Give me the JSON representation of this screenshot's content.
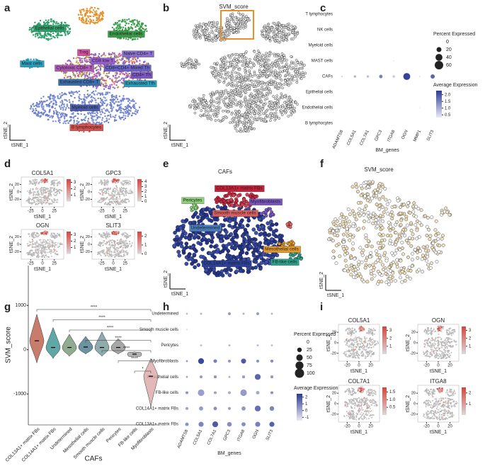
{
  "panel_labels": [
    "a",
    "b",
    "c",
    "d",
    "e",
    "f",
    "g",
    "h",
    "i"
  ],
  "a": {
    "x_label": "tSNE_1",
    "y_label": "tSNE_2",
    "clusters": [
      "Epithelial cells",
      "Endothelial cells",
      "Mast cells",
      "Treg",
      "Naive CD4+ T",
      "CD8 low T",
      "Cytotoxic CD8+ T",
      "CD8+CD4+ Mixed Th",
      "CD4+ Th",
      "Exhausted CD8+ T",
      "Exhausted Tfh",
      "Myeloid cells",
      "B lymphocytes"
    ]
  },
  "b": {
    "title": "SVM_score",
    "x_label": "tSNE_1",
    "y_label": "tSNE_2"
  },
  "d": {
    "x_label": "tSNE_1",
    "y_label": "tSNE_2",
    "xlim": [
      -45,
      45
    ],
    "xticks": [
      -25,
      0,
      25
    ],
    "ylim": [
      -40,
      40
    ],
    "yticks": [
      -20,
      0,
      20
    ],
    "plots": [
      {
        "title": "COL5A1",
        "lim": [
          0,
          3.5
        ],
        "ticks": [
          1,
          2,
          3
        ]
      },
      {
        "title": "GPC3",
        "lim": [
          0,
          4.5
        ],
        "ticks": [
          0,
          1,
          2,
          3,
          4
        ]
      },
      {
        "title": "OGN",
        "lim": [
          0,
          3.5
        ],
        "ticks": [
          1,
          2,
          3
        ]
      },
      {
        "title": "SLIT3",
        "lim": [
          0,
          2.5
        ],
        "ticks": [
          0,
          1,
          2
        ]
      }
    ]
  },
  "e": {
    "title": "CAFs",
    "x_label": "tSNE_1",
    "y_label": "tSNE_2",
    "clusters": [
      "COL13A1+ matrix FBs",
      "Pericytes",
      "Myofibroblasts",
      "Smooth muscle cells",
      "Undetermined",
      "Mesothelial cells",
      "COL14A1+ matrix FBs",
      "FB-like cells"
    ]
  },
  "f": {
    "title": "SVM_score",
    "x_label": "tSNE_1",
    "y_label": "tSNE_2"
  },
  "i": {
    "x_label": "tSNE_1",
    "y_label": "tSNE_2",
    "xlim": [
      -35,
      35
    ],
    "xticks": [
      -20,
      0,
      20
    ],
    "ylim": [
      -35,
      35
    ],
    "yticks": [
      -20,
      0,
      20
    ],
    "plots": [
      {
        "title": "COL5A1",
        "lim": [
          0,
          3.5
        ],
        "ticks": [
          1,
          2,
          3
        ]
      },
      {
        "title": "OGN",
        "lim": [
          0,
          3.5
        ],
        "ticks": [
          1,
          2,
          3
        ]
      },
      {
        "title": "COL7A1",
        "lim": [
          0,
          1.8
        ],
        "ticks": [
          0.5,
          {
            "value": 1,
            "label": "1.0"
          },
          1.5
        ]
      },
      {
        "title": "ITGA8",
        "lim": [
          0,
          2.5
        ],
        "ticks": [
          1,
          2
        ]
      }
    ]
  },
  "chart_data": [
    {
      "type": "dotplot",
      "x_label": "BM_genes",
      "rows": [
        "T lymphocytes",
        "NK cells",
        "Myeloid cells",
        "MAST cells",
        "CAFs",
        "Epithelial cells",
        "Endothelial cells",
        "B lymphocytes"
      ],
      "columns": [
        "ADAMTS8",
        "COL5A1",
        "COL7A1",
        "GPC3",
        "ITGA8",
        "OGN",
        "MMP1",
        "SLIT3"
      ],
      "percent": [
        [
          null,
          null,
          null,
          null,
          null,
          null,
          null,
          null
        ],
        [
          null,
          null,
          null,
          null,
          null,
          null,
          null,
          null
        ],
        [
          null,
          null,
          null,
          null,
          null,
          null,
          null,
          null
        ],
        [
          null,
          null,
          null,
          null,
          1,
          null,
          null,
          null
        ],
        [
          2,
          5,
          5,
          10,
          5,
          40,
          2,
          15
        ],
        [
          null,
          null,
          null,
          null,
          null,
          null,
          null,
          null
        ],
        [
          null,
          null,
          null,
          null,
          null,
          null,
          1,
          null
        ],
        [
          null,
          null,
          null,
          null,
          null,
          null,
          null,
          null
        ]
      ],
      "avg_expression": [
        [
          null,
          null,
          null,
          null,
          null,
          null,
          null,
          null
        ],
        [
          null,
          null,
          null,
          null,
          null,
          null,
          null,
          null
        ],
        [
          null,
          null,
          null,
          null,
          null,
          null,
          null,
          null
        ],
        [
          null,
          null,
          null,
          null,
          0.4,
          null,
          null,
          null
        ],
        [
          0.6,
          0.9,
          0.8,
          1.5,
          0.7,
          2.2,
          0.4,
          1.8
        ],
        [
          null,
          null,
          null,
          null,
          null,
          null,
          null,
          null
        ],
        [
          null,
          null,
          null,
          null,
          null,
          null,
          0.3,
          null
        ],
        [
          null,
          null,
          null,
          null,
          null,
          null,
          null,
          null
        ]
      ],
      "size_legend": {
        "title": "Percent Expressed",
        "ticks": [
          0,
          20,
          40,
          60
        ]
      },
      "color_legend": {
        "title": "Average Expression",
        "lim": [
          0.3,
          2.3
        ],
        "ticks": [
          0.5,
          {
            "value": 1,
            "label": "1.0"
          },
          1.5,
          {
            "value": 2,
            "label": "2.0"
          }
        ],
        "color_low": "#ebebf5",
        "color_high": "#2b3a96"
      }
    },
    {
      "type": "violin",
      "x_label": "CAFs",
      "y_label": "SVM_score",
      "categories": [
        "COL13A1+ matrix FBs",
        "COL14A1+ matrix FBs",
        "Undetermined",
        "Mesothelial cells",
        "Smooth muscle cells",
        "Pericytes",
        "FB-like cells",
        "Myofibroblasts"
      ],
      "median": [
        200,
        50,
        50,
        60,
        50,
        50,
        -100,
        -600
      ],
      "min": [
        -300,
        -200,
        -150,
        -100,
        -150,
        -100,
        -150,
        -1300
      ],
      "max": [
        800,
        500,
        350,
        300,
        400,
        250,
        -50,
        -200
      ],
      "colors": [
        "#b5503a",
        "#2b8a8a",
        "#6b8f6b",
        "#3a6f80",
        "#6b8f8f",
        "#8a8a8a",
        "#9a9a9a",
        "#d9a0a0"
      ],
      "significance": [
        "****",
        "****",
        "****",
        "****",
        "****",
        "****",
        "*"
      ],
      "ylim": [
        -1700,
        1900
      ],
      "yticks": [
        -1000,
        0,
        1000
      ]
    },
    {
      "type": "dotplot",
      "x_label": "BM_genes",
      "rows": [
        "Undetermined",
        "Smooth muscle cells",
        "Pericytes",
        "Myofibroblasts",
        "Mesothelial cells",
        "FB-like cells",
        "COL14A1+ matrix FBs",
        "COL13A1+ matrix FBs"
      ],
      "columns": [
        "ADAMTS8",
        "COL5A1",
        "COL7A1",
        "GPC3",
        "ITGA8",
        "OGN",
        "SLIT3"
      ],
      "percent": [
        [
          5,
          5,
          null,
          10,
          5,
          10,
          5
        ],
        [
          2,
          null,
          null,
          null,
          null,
          null,
          null
        ],
        [
          null,
          5,
          null,
          5,
          null,
          5,
          5
        ],
        [
          5,
          40,
          15,
          10,
          30,
          10,
          10
        ],
        [
          5,
          10,
          10,
          5,
          10,
          40,
          10
        ],
        [
          10,
          50,
          10,
          10,
          50,
          15,
          10
        ],
        [
          10,
          20,
          15,
          10,
          20,
          40,
          25
        ],
        [
          15,
          30,
          40,
          25,
          20,
          30,
          30
        ]
      ],
      "avg_expression": [
        [
          -0.5,
          -0.3,
          null,
          0.3,
          -0.2,
          0.2,
          -0.3
        ],
        [
          -0.8,
          null,
          null,
          null,
          null,
          null,
          null
        ],
        [
          null,
          -0.5,
          null,
          -0.3,
          null,
          -0.4,
          -0.5
        ],
        [
          0.2,
          2.2,
          1.0,
          0.4,
          1.8,
          0.5,
          0.7
        ],
        [
          0,
          0.3,
          0.5,
          -0.2,
          0.3,
          1.5,
          0.4
        ],
        [
          0.4,
          0.2,
          0.1,
          -0.1,
          0.3,
          0,
          0.5
        ],
        [
          0.1,
          0.3,
          0.5,
          0.2,
          0.4,
          1.3,
          0.8
        ],
        [
          0.5,
          0.8,
          1.8,
          0.6,
          0.6,
          0.9,
          1.6
        ]
      ],
      "size_legend": {
        "title": "Percent Expressed",
        "ticks": [
          0,
          25,
          50,
          75,
          100
        ]
      },
      "color_legend": {
        "title": "Average Expression",
        "lim": [
          -1.5,
          2.5
        ],
        "ticks": [
          -1,
          0,
          1,
          2
        ],
        "color_low": "#ebebf5",
        "color_high": "#2b3a96"
      }
    }
  ]
}
